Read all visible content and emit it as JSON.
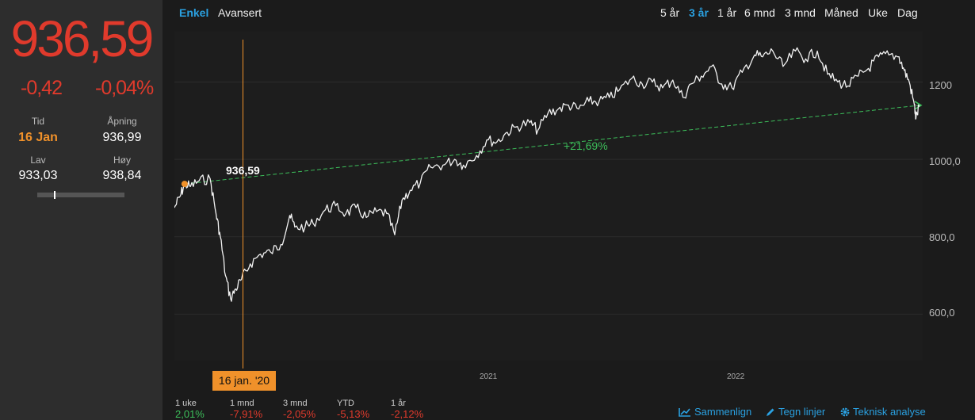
{
  "quote": {
    "last": "936,59",
    "change_abs": "-0,42",
    "change_pct": "-0,04%",
    "time_label": "Tid",
    "time_value": "16 Jan",
    "open_label": "Åpning",
    "open_value": "936,99",
    "low_label": "Lav",
    "low_value": "933,03",
    "high_label": "Høy",
    "high_value": "938,84",
    "day_range_position": 0.19
  },
  "chart_tabs": [
    "Enkel",
    "Avansert"
  ],
  "active_chart_tab": "Enkel",
  "ranges": [
    "5 år",
    "3 år",
    "1 år",
    "6 mnd",
    "3 mnd",
    "Måned",
    "Uke",
    "Dag"
  ],
  "active_range": "3 år",
  "cursor": {
    "date": "16 jan. '20",
    "value": "936,59"
  },
  "trend_label": "+21,69%",
  "performance": [
    {
      "label": "1 uke",
      "value": "2,01%",
      "dir": "up"
    },
    {
      "label": "1 mnd",
      "value": "-7,91%",
      "dir": "down"
    },
    {
      "label": "3 mnd",
      "value": "-2,05%",
      "dir": "down"
    },
    {
      "label": "YTD",
      "value": "-5,13%",
      "dir": "down"
    },
    {
      "label": "1 år",
      "value": "-2,12%",
      "dir": "down"
    }
  ],
  "tools": [
    {
      "label": "Sammenlign",
      "icon": "chart-line-icon"
    },
    {
      "label": "Tegn linjer",
      "icon": "pencil-icon"
    },
    {
      "label": "Teknisk analyse",
      "icon": "gear-icon"
    }
  ],
  "colors": {
    "accent": "#2aa0e0",
    "negative": "#e03a2c",
    "positive": "#3cbe5a",
    "cursor": "#f0912a"
  },
  "chart_data": {
    "type": "line",
    "x_ticks": [
      "2021",
      "2022"
    ],
    "y_ticks": [
      "600,0",
      "800,0",
      "1000,0",
      "1200"
    ],
    "ylim": [
      480,
      1330
    ],
    "grid": true,
    "series": [
      {
        "points": [
          [
            "2020-01-02",
            875
          ],
          [
            "2020-01-10",
            905
          ],
          [
            "2020-01-16",
            936.59
          ],
          [
            "2020-01-24",
            930
          ],
          [
            "2020-02-05",
            945
          ],
          [
            "2020-02-20",
            950
          ],
          [
            "2020-02-28",
            860
          ],
          [
            "2020-03-05",
            800
          ],
          [
            "2020-03-12",
            700
          ],
          [
            "2020-03-19",
            640
          ],
          [
            "2020-03-26",
            665
          ],
          [
            "2020-04-03",
            690
          ],
          [
            "2020-04-15",
            730
          ],
          [
            "2020-04-29",
            755
          ],
          [
            "2020-05-13",
            760
          ],
          [
            "2020-05-27",
            780
          ],
          [
            "2020-06-08",
            855
          ],
          [
            "2020-06-15",
            825
          ],
          [
            "2020-06-29",
            825
          ],
          [
            "2020-07-10",
            835
          ],
          [
            "2020-07-27",
            870
          ],
          [
            "2020-08-10",
            880
          ],
          [
            "2020-08-24",
            860
          ],
          [
            "2020-09-07",
            875
          ],
          [
            "2020-09-21",
            850
          ],
          [
            "2020-10-05",
            865
          ],
          [
            "2020-10-19",
            860
          ],
          [
            "2020-10-30",
            805
          ],
          [
            "2020-11-09",
            895
          ],
          [
            "2020-11-20",
            920
          ],
          [
            "2020-12-04",
            940
          ],
          [
            "2020-12-18",
            980
          ],
          [
            "2021-01-04",
            985
          ],
          [
            "2021-01-20",
            1000
          ],
          [
            "2021-02-01",
            985
          ],
          [
            "2021-02-19",
            1010
          ],
          [
            "2021-03-05",
            1050
          ],
          [
            "2021-03-19",
            1045
          ],
          [
            "2021-04-02",
            1070
          ],
          [
            "2021-04-16",
            1085
          ],
          [
            "2021-05-03",
            1095
          ],
          [
            "2021-05-14",
            1075
          ],
          [
            "2021-05-28",
            1120
          ],
          [
            "2021-06-11",
            1130
          ],
          [
            "2021-06-25",
            1140
          ],
          [
            "2021-07-09",
            1130
          ],
          [
            "2021-07-23",
            1150
          ],
          [
            "2021-08-06",
            1150
          ],
          [
            "2021-08-20",
            1160
          ],
          [
            "2021-09-03",
            1180
          ],
          [
            "2021-09-20",
            1210
          ],
          [
            "2021-10-04",
            1195
          ],
          [
            "2021-10-18",
            1200
          ],
          [
            "2021-11-01",
            1185
          ],
          [
            "2021-11-15",
            1205
          ],
          [
            "2021-11-29",
            1160
          ],
          [
            "2021-12-10",
            1195
          ],
          [
            "2021-12-24",
            1215
          ],
          [
            "2022-01-07",
            1240
          ],
          [
            "2022-01-21",
            1195
          ],
          [
            "2022-02-04",
            1185
          ],
          [
            "2022-02-18",
            1225
          ],
          [
            "2022-03-07",
            1270
          ],
          [
            "2022-03-18",
            1265
          ],
          [
            "2022-04-01",
            1280
          ],
          [
            "2022-04-15",
            1240
          ],
          [
            "2022-05-02",
            1280
          ],
          [
            "2022-05-16",
            1260
          ],
          [
            "2022-06-01",
            1280
          ],
          [
            "2022-06-15",
            1220
          ],
          [
            "2022-06-29",
            1200
          ],
          [
            "2022-07-13",
            1190
          ],
          [
            "2022-07-27",
            1215
          ],
          [
            "2022-08-10",
            1235
          ],
          [
            "2022-08-24",
            1265
          ],
          [
            "2022-09-07",
            1270
          ],
          [
            "2022-09-21",
            1265
          ],
          [
            "2022-09-28",
            1230
          ],
          [
            "2022-10-05",
            1200
          ],
          [
            "2022-10-12",
            1140
          ],
          [
            "2022-10-14",
            1105
          ],
          [
            "2022-10-19",
            1140
          ]
        ]
      },
      {
        "type": "trend",
        "points": [
          [
            "2020-01-16",
            936.59
          ],
          [
            "2022-10-19",
            1139.7
          ]
        ]
      }
    ]
  }
}
